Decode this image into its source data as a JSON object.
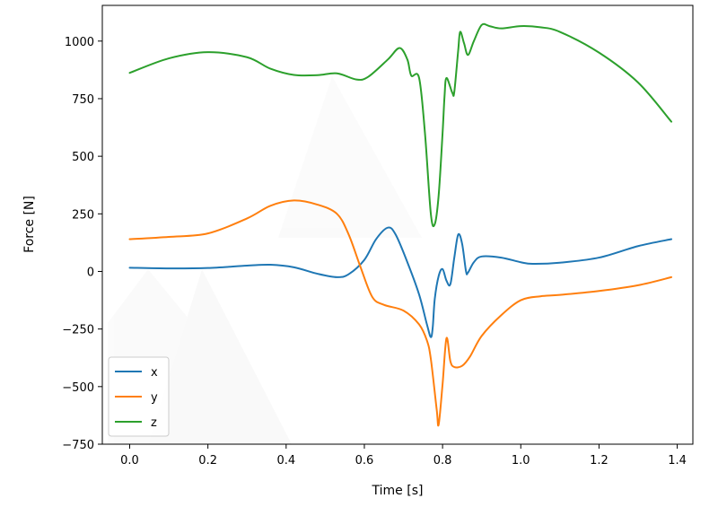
{
  "chart_data": {
    "type": "line",
    "title": "",
    "xlabel": "Time [s]",
    "ylabel": "Force [N]",
    "xlim": [
      -0.07,
      1.44
    ],
    "ylim": [
      -750,
      1155
    ],
    "xticks": [
      0.0,
      0.2,
      0.4,
      0.6,
      0.8,
      1.0,
      1.2,
      1.4
    ],
    "xtick_labels": [
      "0.0",
      "0.2",
      "0.4",
      "0.6",
      "0.8",
      "1.0",
      "1.2",
      "1.4"
    ],
    "yticks": [
      -750,
      -500,
      -250,
      0,
      250,
      500,
      750,
      1000
    ],
    "ytick_labels": [
      "−750",
      "−500",
      "−250",
      "0",
      "250",
      "500",
      "750",
      "1000"
    ],
    "grid": false,
    "legend_position": "lower-left",
    "series": [
      {
        "name": "x",
        "color": "#1f77b4",
        "points": [
          [
            0.0,
            16
          ],
          [
            0.1,
            13
          ],
          [
            0.2,
            15
          ],
          [
            0.3,
            25
          ],
          [
            0.36,
            29
          ],
          [
            0.42,
            18
          ],
          [
            0.48,
            -10
          ],
          [
            0.53,
            -25
          ],
          [
            0.56,
            -12
          ],
          [
            0.6,
            50
          ],
          [
            0.63,
            140
          ],
          [
            0.66,
            190
          ],
          [
            0.68,
            160
          ],
          [
            0.71,
            40
          ],
          [
            0.74,
            -100
          ],
          [
            0.76,
            -230
          ],
          [
            0.77,
            -285
          ],
          [
            0.775,
            -240
          ],
          [
            0.78,
            -120
          ],
          [
            0.79,
            -20
          ],
          [
            0.8,
            10
          ],
          [
            0.81,
            -40
          ],
          [
            0.82,
            -55
          ],
          [
            0.83,
            60
          ],
          [
            0.84,
            160
          ],
          [
            0.85,
            120
          ],
          [
            0.86,
            0
          ],
          [
            0.865,
            -5
          ],
          [
            0.88,
            40
          ],
          [
            0.9,
            65
          ],
          [
            0.95,
            60
          ],
          [
            1.0,
            40
          ],
          [
            1.03,
            33
          ],
          [
            1.1,
            38
          ],
          [
            1.2,
            60
          ],
          [
            1.3,
            110
          ],
          [
            1.385,
            140
          ]
        ]
      },
      {
        "name": "y",
        "color": "#ff7f0e",
        "points": [
          [
            0.0,
            140
          ],
          [
            0.1,
            150
          ],
          [
            0.2,
            165
          ],
          [
            0.3,
            230
          ],
          [
            0.36,
            285
          ],
          [
            0.42,
            308
          ],
          [
            0.48,
            290
          ],
          [
            0.53,
            250
          ],
          [
            0.56,
            160
          ],
          [
            0.59,
            20
          ],
          [
            0.62,
            -110
          ],
          [
            0.65,
            -145
          ],
          [
            0.7,
            -170
          ],
          [
            0.74,
            -230
          ],
          [
            0.76,
            -300
          ],
          [
            0.77,
            -380
          ],
          [
            0.785,
            -600
          ],
          [
            0.79,
            -665
          ],
          [
            0.8,
            -490
          ],
          [
            0.81,
            -290
          ],
          [
            0.82,
            -390
          ],
          [
            0.83,
            -415
          ],
          [
            0.85,
            -410
          ],
          [
            0.87,
            -370
          ],
          [
            0.9,
            -280
          ],
          [
            0.95,
            -190
          ],
          [
            1.0,
            -125
          ],
          [
            1.05,
            -108
          ],
          [
            1.1,
            -102
          ],
          [
            1.2,
            -85
          ],
          [
            1.3,
            -60
          ],
          [
            1.385,
            -25
          ]
        ]
      },
      {
        "name": "z",
        "color": "#2ca02c",
        "points": [
          [
            0.0,
            862
          ],
          [
            0.1,
            925
          ],
          [
            0.2,
            952
          ],
          [
            0.3,
            930
          ],
          [
            0.36,
            880
          ],
          [
            0.42,
            853
          ],
          [
            0.48,
            852
          ],
          [
            0.53,
            860
          ],
          [
            0.58,
            833
          ],
          [
            0.61,
            845
          ],
          [
            0.66,
            920
          ],
          [
            0.69,
            970
          ],
          [
            0.71,
            920
          ],
          [
            0.72,
            850
          ],
          [
            0.74,
            840
          ],
          [
            0.755,
            600
          ],
          [
            0.77,
            250
          ],
          [
            0.78,
            205
          ],
          [
            0.79,
            330
          ],
          [
            0.8,
            600
          ],
          [
            0.805,
            760
          ],
          [
            0.81,
            840
          ],
          [
            0.825,
            775
          ],
          [
            0.83,
            780
          ],
          [
            0.84,
            960
          ],
          [
            0.845,
            1040
          ],
          [
            0.855,
            990
          ],
          [
            0.865,
            940
          ],
          [
            0.88,
            1000
          ],
          [
            0.9,
            1070
          ],
          [
            0.92,
            1065
          ],
          [
            0.95,
            1055
          ],
          [
            1.0,
            1065
          ],
          [
            1.05,
            1060
          ],
          [
            1.1,
            1040
          ],
          [
            1.2,
            950
          ],
          [
            1.3,
            820
          ],
          [
            1.385,
            650
          ]
        ]
      }
    ]
  }
}
